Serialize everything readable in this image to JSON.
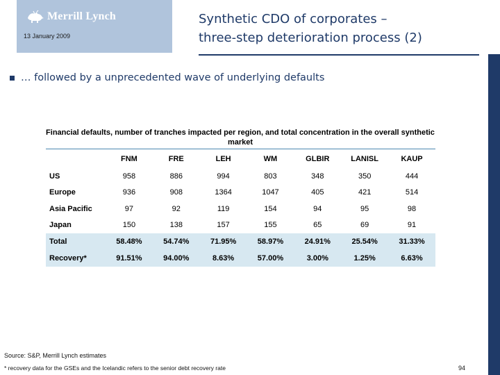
{
  "header": {
    "brand": "Merrill Lynch",
    "date": "13 January 2009",
    "title_line1": "Synthetic CDO of corporates –",
    "title_line2": "three-step deterioration process (2)"
  },
  "bullet": {
    "text": "… followed by a unprecedented wave of underlying defaults"
  },
  "table": {
    "title": "Financial defaults, number of tranches impacted per region, and total concentration in the overall synthetic market",
    "columns": [
      "",
      "FNM",
      "FRE",
      "LEH",
      "WM",
      "GLBIR",
      "LANISL",
      "KAUP"
    ],
    "rows": [
      {
        "label": "US",
        "values": [
          "958",
          "886",
          "994",
          "803",
          "348",
          "350",
          "444"
        ]
      },
      {
        "label": "Europe",
        "values": [
          "936",
          "908",
          "1364",
          "1047",
          "405",
          "421",
          "514"
        ]
      },
      {
        "label": "Asia Pacific",
        "values": [
          "97",
          "92",
          "119",
          "154",
          "94",
          "95",
          "98"
        ]
      },
      {
        "label": "Japan",
        "values": [
          "150",
          "138",
          "157",
          "155",
          "65",
          "69",
          "91"
        ]
      }
    ],
    "shaded_rows": [
      {
        "label": "Total",
        "values": [
          "58.48%",
          "54.74%",
          "71.95%",
          "58.97%",
          "24.91%",
          "25.54%",
          "31.33%"
        ]
      },
      {
        "label": "Recovery*",
        "values": [
          "91.51%",
          "94.00%",
          "8.63%",
          "57.00%",
          "3.00%",
          "1.25%",
          "6.63%"
        ]
      }
    ],
    "shade_color": "#d7e8f1"
  },
  "footer": {
    "source": "Source: S&P, Merrill Lynch estimates",
    "footnote": "* recovery data for the GSEs and the Icelandic refers to the senior debt recovery rate",
    "page_number": "94"
  },
  "colors": {
    "navy": "#1f3a68",
    "logo_bg": "#b0c4dc",
    "table_rule": "#4a86b0"
  },
  "icons": {
    "logo": "bull-icon",
    "bullet": "square-bullet-icon"
  }
}
